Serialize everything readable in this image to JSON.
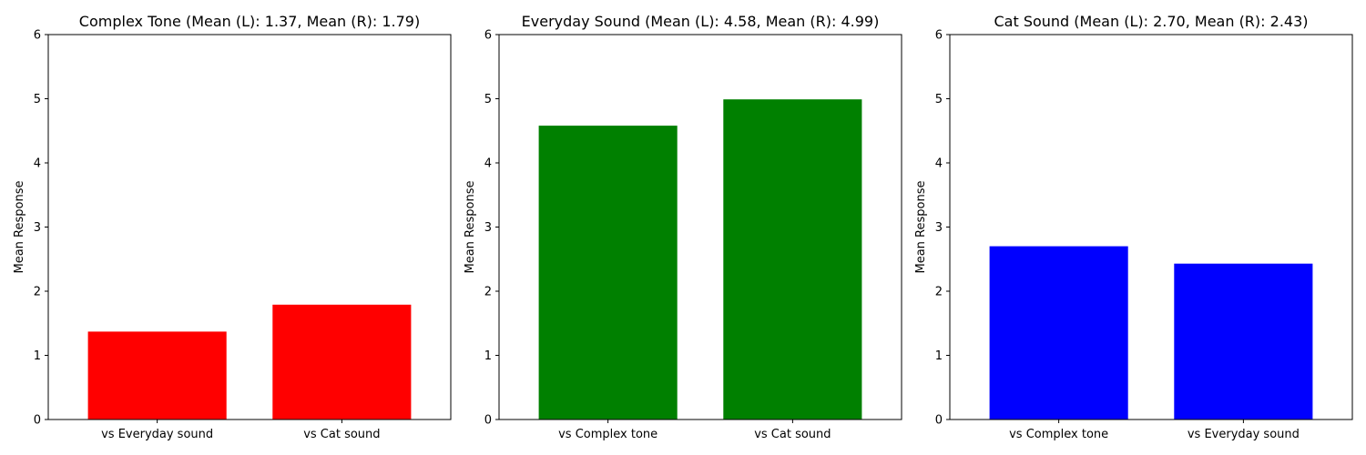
{
  "chart_data": [
    {
      "type": "bar",
      "title": "Complex Tone (Mean (L): 1.37, Mean (R): 1.79)",
      "ylabel": "Mean Response",
      "xlabel": "",
      "categories": [
        "vs Everyday sound",
        "vs Cat sound"
      ],
      "values": [
        1.37,
        1.79
      ],
      "color": "#ff0000",
      "ylim": [
        0,
        6
      ],
      "yticks": [
        "0",
        "1",
        "2",
        "3",
        "4",
        "5",
        "6"
      ],
      "grid": false
    },
    {
      "type": "bar",
      "title": "Everyday Sound (Mean (L): 4.58, Mean (R): 4.99)",
      "ylabel": "Mean Response",
      "xlabel": "",
      "categories": [
        "vs Complex tone",
        "vs Cat sound"
      ],
      "values": [
        4.58,
        4.99
      ],
      "color": "#008000",
      "ylim": [
        0,
        6
      ],
      "yticks": [
        "0",
        "1",
        "2",
        "3",
        "4",
        "5",
        "6"
      ],
      "grid": false
    },
    {
      "type": "bar",
      "title": "Cat Sound (Mean (L): 2.70, Mean (R): 2.43)",
      "ylabel": "Mean Response",
      "xlabel": "",
      "categories": [
        "vs Complex tone",
        "vs Everyday sound"
      ],
      "values": [
        2.7,
        2.43
      ],
      "color": "#0000ff",
      "ylim": [
        0,
        6
      ],
      "yticks": [
        "0",
        "1",
        "2",
        "3",
        "4",
        "5",
        "6"
      ],
      "grid": false
    }
  ]
}
